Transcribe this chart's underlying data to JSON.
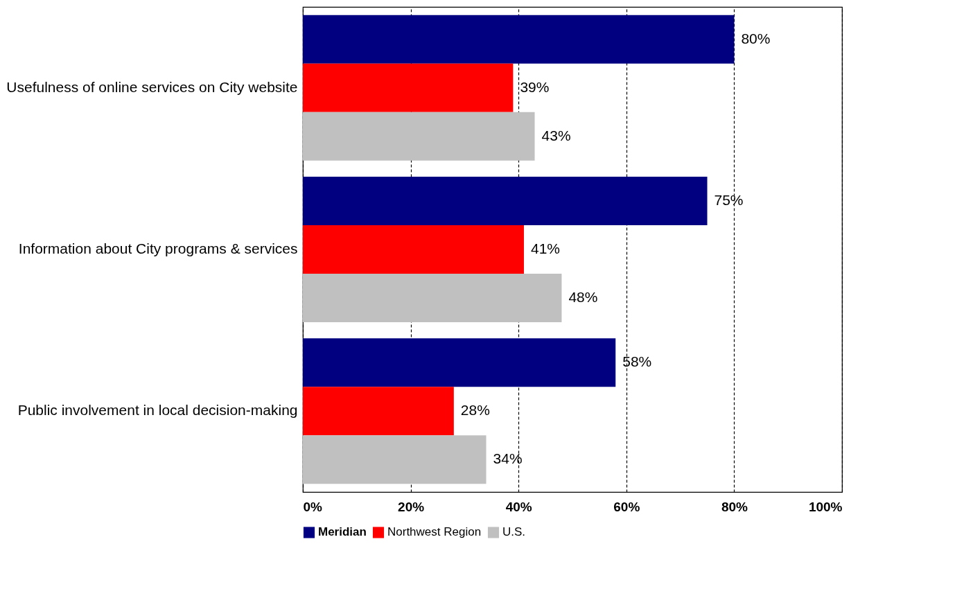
{
  "chart_data": {
    "type": "bar",
    "orientation": "horizontal",
    "categories": [
      "Usefulness of online services on City website",
      "Information about City programs & services",
      "Public involvement in local decision-making"
    ],
    "series": [
      {
        "name": "Meridian",
        "color": "#000080",
        "values": [
          80,
          75,
          58
        ],
        "value_labels": [
          "80%",
          "75%",
          "58%"
        ]
      },
      {
        "name": "Northwest Region",
        "color": "#ff0000",
        "values": [
          39,
          41,
          28
        ],
        "value_labels": [
          "39%",
          "41%",
          "28%"
        ]
      },
      {
        "name": "U.S.",
        "color": "#c0c0c0",
        "values": [
          43,
          48,
          34
        ],
        "value_labels": [
          "43%",
          "48%",
          "34%"
        ]
      }
    ],
    "xlim": [
      0,
      100
    ],
    "xticks": [
      {
        "value": 0,
        "label": "0%"
      },
      {
        "value": 20,
        "label": "20%"
      },
      {
        "value": 40,
        "label": "40%"
      },
      {
        "value": 60,
        "label": "60%"
      },
      {
        "value": 80,
        "label": "80%"
      },
      {
        "value": 100,
        "label": "100%"
      }
    ],
    "grid": "x",
    "legend": "bottom"
  }
}
